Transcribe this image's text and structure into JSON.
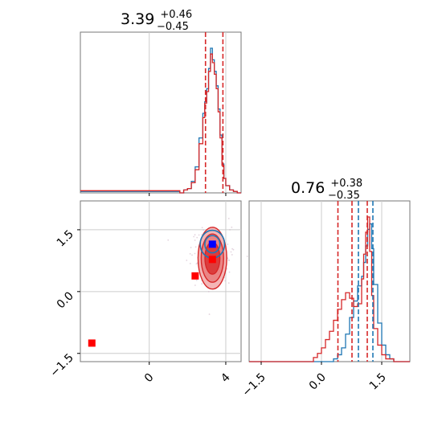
{
  "chart_data": [
    {
      "type": "histogram",
      "panel": "top-left",
      "title": {
        "median": "3.39",
        "plus": "+0.46",
        "minus": "−0.45"
      },
      "xlim": [
        -3.6,
        4.8
      ],
      "x_ticks": [
        0,
        4
      ],
      "vlines_red": [
        2.94,
        3.85
      ],
      "series": [
        {
          "color": "#1f77b4",
          "x": [
            -3.6,
            1.6,
            1.8,
            2.0,
            2.2,
            2.4,
            2.6,
            2.8,
            2.9,
            3.0,
            3.1,
            3.2,
            3.3,
            3.4,
            3.5,
            3.6,
            3.7,
            3.8,
            3.9,
            4.0,
            4.2,
            4.4,
            4.6,
            4.8
          ],
          "values": [
            0.01,
            0,
            0.02,
            0.03,
            0.08,
            0.18,
            0.38,
            0.55,
            0.63,
            0.72,
            0.86,
            1.0,
            0.92,
            0.84,
            0.74,
            0.58,
            0.4,
            0.2,
            0.1,
            0.05,
            0.02,
            0.01,
            0,
            0
          ]
        },
        {
          "color": "#d62728",
          "x": [
            -3.6,
            1.6,
            1.8,
            2.0,
            2.2,
            2.4,
            2.6,
            2.8,
            2.9,
            3.0,
            3.1,
            3.2,
            3.3,
            3.4,
            3.5,
            3.6,
            3.7,
            3.8,
            3.9,
            4.0,
            4.2,
            4.4,
            4.6,
            4.8
          ],
          "values": [
            0.015,
            0,
            0.02,
            0.03,
            0.07,
            0.16,
            0.34,
            0.52,
            0.62,
            0.7,
            0.84,
            0.96,
            0.9,
            0.82,
            0.72,
            0.56,
            0.38,
            0.19,
            0.1,
            0.05,
            0.02,
            0.01,
            0,
            0
          ]
        }
      ]
    },
    {
      "type": "contour",
      "panel": "bottom-left",
      "xlim": [
        -3.6,
        4.8
      ],
      "ylim": [
        -1.7,
        2.2
      ],
      "x_ticks": [
        0,
        4
      ],
      "y_ticks": [
        -1.5,
        0.0,
        1.5
      ],
      "markers": [
        {
          "x": -3.0,
          "y": -1.25,
          "color": "#ff0000"
        },
        {
          "x": 2.4,
          "y": 0.38,
          "color": "#ff0000"
        },
        {
          "x": 3.3,
          "y": 0.78,
          "color": "#ff0000"
        },
        {
          "x": 3.3,
          "y": 1.15,
          "color": "#0000ff"
        }
      ]
    },
    {
      "type": "histogram",
      "panel": "bottom-right",
      "title": {
        "median": "0.76",
        "plus": "+0.38",
        "minus": "−0.35"
      },
      "xlim": [
        -1.8,
        2.2
      ],
      "x_ticks": [
        -1.5,
        0.0,
        1.5
      ],
      "vlines_red": [
        0.41,
        0.76,
        1.14
      ],
      "vlines_blue": [
        0.92,
        1.28
      ],
      "series": [
        {
          "color": "#1f77b4",
          "x": [
            -1.8,
            0.2,
            0.3,
            0.4,
            0.5,
            0.6,
            0.7,
            0.8,
            0.9,
            1.0,
            1.05,
            1.1,
            1.15,
            1.2,
            1.25,
            1.3,
            1.4,
            1.5,
            1.6,
            1.7,
            1.8,
            2.2
          ],
          "values": [
            0,
            0,
            0.02,
            0.05,
            0.1,
            0.2,
            0.32,
            0.44,
            0.55,
            0.62,
            0.72,
            0.84,
            0.96,
            1.0,
            0.82,
            0.56,
            0.28,
            0.12,
            0.05,
            0.02,
            0,
            0
          ]
        },
        {
          "color": "#d62728",
          "x": [
            -1.8,
            -0.3,
            -0.2,
            -0.1,
            0.0,
            0.1,
            0.2,
            0.3,
            0.4,
            0.5,
            0.6,
            0.7,
            0.8,
            0.9,
            1.0,
            1.05,
            1.1,
            1.15,
            1.2,
            1.25,
            1.3,
            1.4,
            1.5,
            1.6,
            1.8,
            2.2
          ],
          "values": [
            0,
            0,
            0.03,
            0.06,
            0.1,
            0.16,
            0.22,
            0.3,
            0.38,
            0.45,
            0.5,
            0.46,
            0.4,
            0.42,
            0.6,
            0.78,
            0.94,
            1.05,
            0.8,
            0.48,
            0.24,
            0.12,
            0.05,
            0.02,
            0,
            0
          ]
        }
      ]
    }
  ]
}
